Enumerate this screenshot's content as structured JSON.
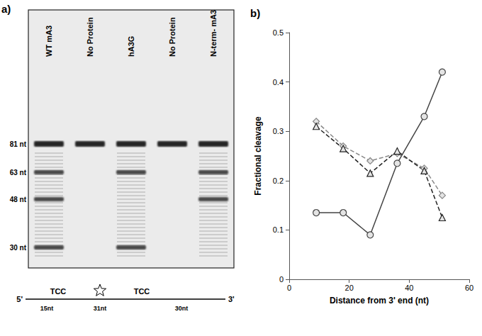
{
  "gel": {
    "panel_label": "a)",
    "markers": [
      "81 nt",
      "63 nt",
      "48 nt",
      "30 nt"
    ],
    "lanes": [
      {
        "label": "WT mA3",
        "bands": [
          "81 nt",
          "63 nt",
          "48 nt",
          "30 nt"
        ]
      },
      {
        "label": "No Protein",
        "bands": [
          "81 nt"
        ]
      },
      {
        "label": "hA3G",
        "bands": [
          "81 nt",
          "63 nt",
          "30 nt"
        ]
      },
      {
        "label": "No Protein",
        "bands": [
          "81 nt"
        ]
      },
      {
        "label": "N-term- mA3",
        "bands": [
          "81 nt",
          "63 nt",
          "48 nt"
        ]
      }
    ],
    "substrate": {
      "left": "5'",
      "right": "3'",
      "motifs": [
        "TCC",
        "TCC"
      ],
      "segments": [
        "15nt",
        "31nt",
        "30nt"
      ]
    }
  },
  "chart_data": {
    "type": "line",
    "title": "b)",
    "x_label": "Distance from 3' end (nt)",
    "y_label": "Fractional cleavage",
    "xlim": [
      0,
      60
    ],
    "xticks": [
      0,
      20,
      40,
      60
    ],
    "ylim": [
      0,
      0.5
    ],
    "yticks": [
      0,
      0.1,
      0.2,
      0.3,
      0.4,
      0.5
    ],
    "grid": false,
    "series": [
      {
        "color": "#444444",
        "marker": "circle",
        "line_style": "solid",
        "x": [
          9,
          18,
          27,
          36,
          45,
          51
        ],
        "values": [
          0.135,
          0.135,
          0.09,
          0.235,
          0.33,
          0.42
        ]
      },
      {
        "color": "#888888",
        "marker": "diamond",
        "line_style": "dashed",
        "x": [
          9,
          18,
          27,
          36,
          45,
          51
        ],
        "values": [
          0.32,
          0.27,
          0.24,
          0.255,
          0.225,
          0.17
        ]
      },
      {
        "color": "#222222",
        "marker": "triangle",
        "line_style": "dashed",
        "x": [
          9,
          18,
          27,
          36,
          45,
          51
        ],
        "values": [
          0.31,
          0.265,
          0.215,
          0.26,
          0.22,
          0.125
        ]
      }
    ]
  }
}
